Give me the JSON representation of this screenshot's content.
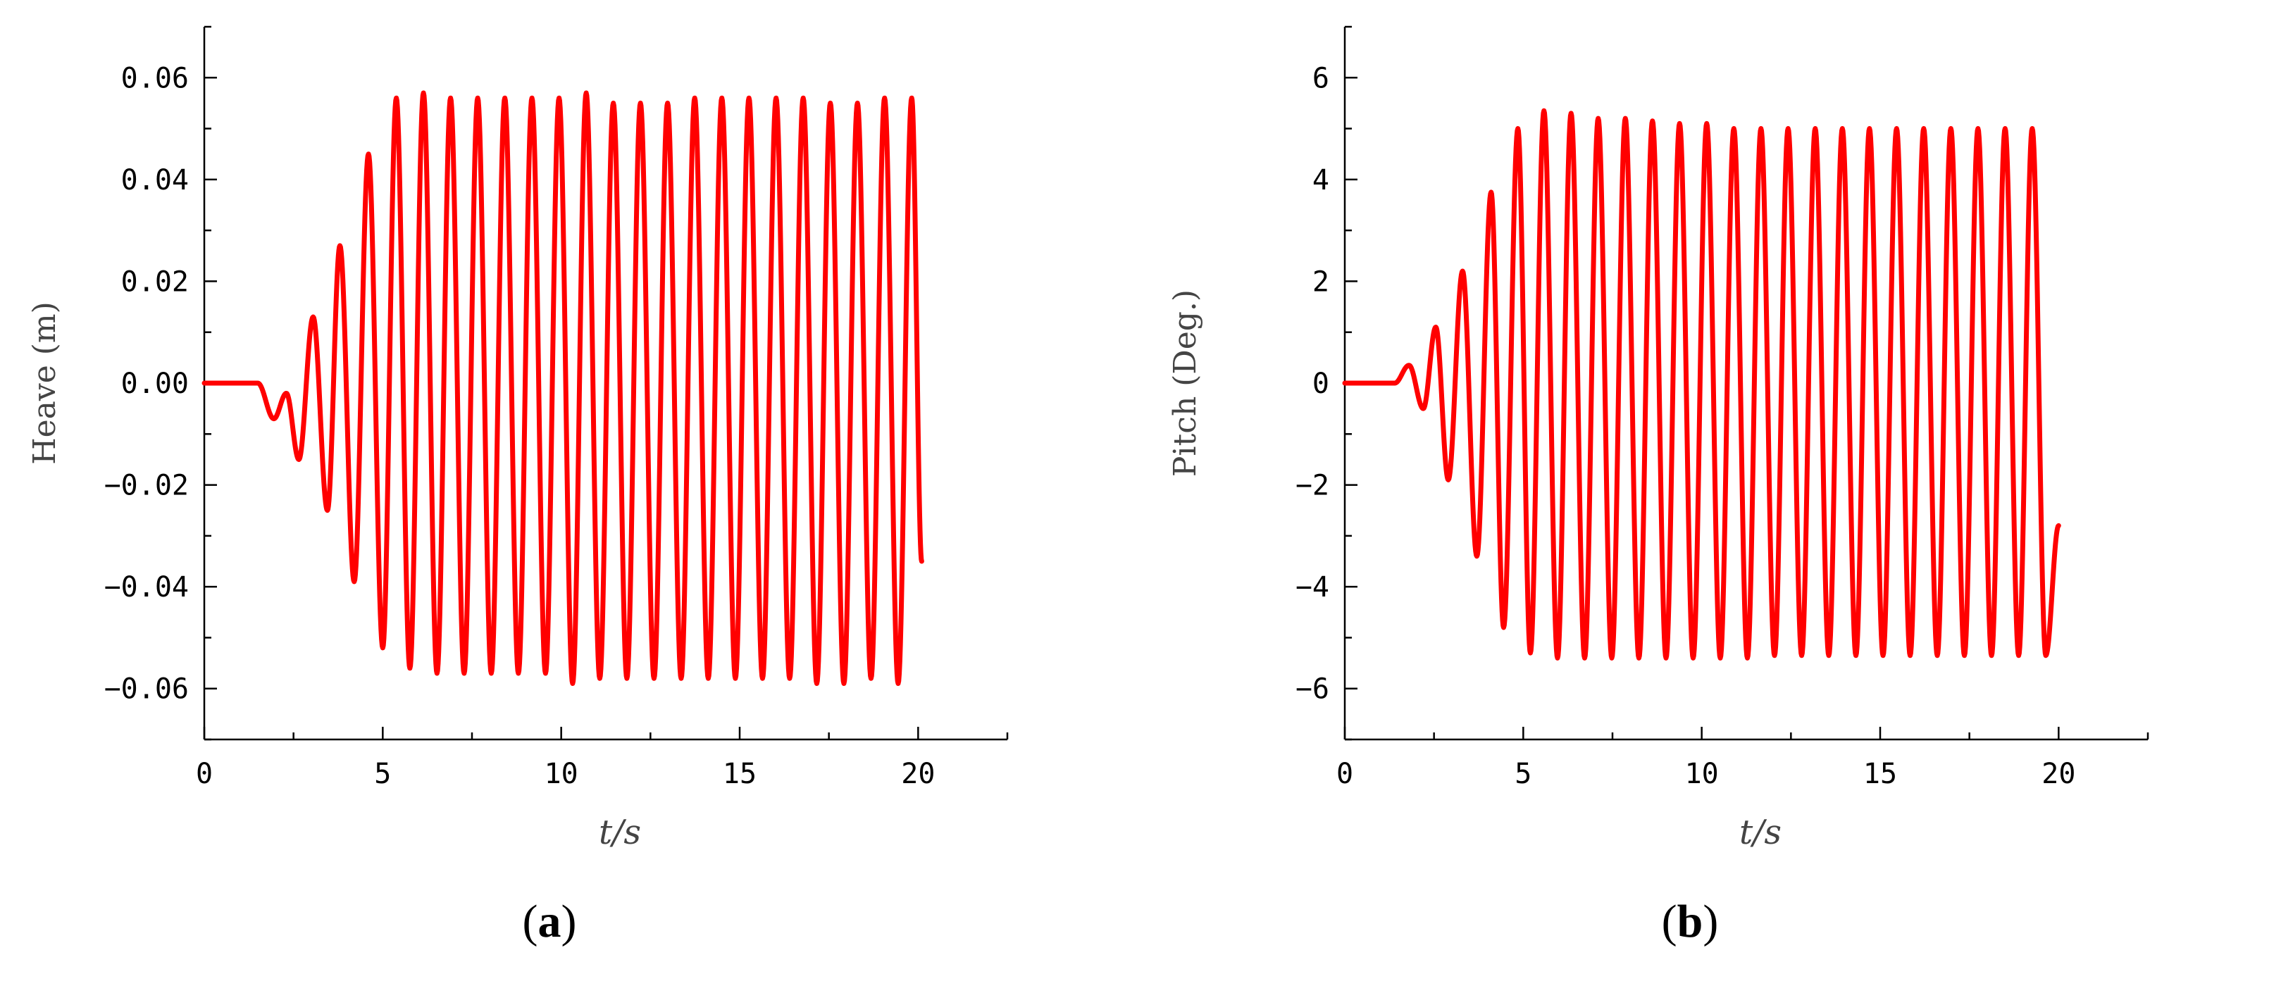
{
  "colors": {
    "series": "#ff0000",
    "axis": "#000000"
  },
  "chart_data": [
    {
      "type": "line",
      "panel_label": "a",
      "xlabel": "t/s",
      "ylabel": "Heave (m)",
      "xlim": [
        0,
        22.5
      ],
      "ylim": [
        -0.07,
        0.07
      ],
      "xticks": [
        0,
        5,
        10,
        15,
        20
      ],
      "xtick_labels": [
        "0",
        "5",
        "10",
        "15",
        "20"
      ],
      "yticks": [
        -0.06,
        -0.04,
        -0.02,
        0.0,
        0.02,
        0.04,
        0.06
      ],
      "ytick_labels": [
        "−0.06",
        "−0.04",
        "−0.02",
        "0.00",
        "0.02",
        "0.04",
        "0.06"
      ],
      "grid": false,
      "series": [
        {
          "color": "#ff0000",
          "x": [
            0,
            1.5,
            1.95,
            2.3,
            2.65,
            3.05,
            3.45,
            3.8,
            4.2,
            4.6,
            5.0,
            5.38,
            5.76,
            6.14,
            6.52,
            6.9,
            7.28,
            7.66,
            8.04,
            8.42,
            8.8,
            9.18,
            9.56,
            9.94,
            10.32,
            10.7,
            11.08,
            11.46,
            11.84,
            12.22,
            12.6,
            12.98,
            13.36,
            13.74,
            14.12,
            14.5,
            14.88,
            15.26,
            15.64,
            16.02,
            16.4,
            16.78,
            17.16,
            17.54,
            17.92,
            18.3,
            18.68,
            19.06,
            19.44,
            19.82,
            20.1
          ],
          "y": [
            0.0,
            0.0,
            -0.007,
            -0.002,
            -0.015,
            0.013,
            -0.025,
            0.027,
            -0.039,
            0.045,
            -0.052,
            0.056,
            -0.056,
            0.057,
            -0.057,
            0.056,
            -0.057,
            0.056,
            -0.057,
            0.056,
            -0.057,
            0.056,
            -0.057,
            0.056,
            -0.059,
            0.057,
            -0.058,
            0.055,
            -0.058,
            0.055,
            -0.058,
            0.055,
            -0.058,
            0.056,
            -0.058,
            0.056,
            -0.058,
            0.056,
            -0.058,
            0.056,
            -0.058,
            0.056,
            -0.059,
            0.055,
            -0.059,
            0.055,
            -0.058,
            0.056,
            -0.059,
            0.056,
            -0.035
          ]
        }
      ]
    },
    {
      "type": "line",
      "panel_label": "b",
      "xlabel": "t/s",
      "ylabel": "Pitch (Deg.)",
      "xlim": [
        0,
        22.5
      ],
      "ylim": [
        -7,
        7
      ],
      "xticks": [
        0,
        5,
        10,
        15,
        20
      ],
      "xtick_labels": [
        "0",
        "5",
        "10",
        "15",
        "20"
      ],
      "yticks": [
        -6,
        -4,
        -2,
        0,
        2,
        4,
        6
      ],
      "ytick_labels": [
        "−6",
        "−4",
        "−2",
        "0",
        "2",
        "4",
        "6"
      ],
      "grid": false,
      "series": [
        {
          "color": "#ff0000",
          "x": [
            0,
            1.4,
            1.8,
            2.2,
            2.55,
            2.9,
            3.3,
            3.7,
            4.1,
            4.45,
            4.85,
            5.2,
            5.58,
            5.96,
            6.34,
            6.72,
            7.1,
            7.48,
            7.86,
            8.24,
            8.62,
            9.0,
            9.38,
            9.76,
            10.14,
            10.52,
            10.9,
            11.28,
            11.66,
            12.04,
            12.42,
            12.8,
            13.18,
            13.56,
            13.94,
            14.32,
            14.7,
            15.08,
            15.46,
            15.84,
            16.22,
            16.6,
            16.98,
            17.36,
            17.74,
            18.12,
            18.5,
            18.88,
            19.26,
            19.64,
            20.0
          ],
          "y": [
            0.0,
            0.0,
            0.35,
            -0.5,
            1.1,
            -1.9,
            2.2,
            -3.4,
            3.75,
            -4.8,
            5.0,
            -5.3,
            5.35,
            -5.4,
            5.3,
            -5.4,
            5.2,
            -5.4,
            5.2,
            -5.4,
            5.15,
            -5.4,
            5.1,
            -5.4,
            5.1,
            -5.4,
            5.0,
            -5.4,
            5.0,
            -5.35,
            5.0,
            -5.35,
            5.0,
            -5.35,
            5.0,
            -5.35,
            5.0,
            -5.35,
            5.0,
            -5.35,
            5.0,
            -5.35,
            5.0,
            -5.35,
            5.0,
            -5.35,
            5.0,
            -5.35,
            5.0,
            -5.35,
            -2.8
          ]
        }
      ]
    }
  ]
}
